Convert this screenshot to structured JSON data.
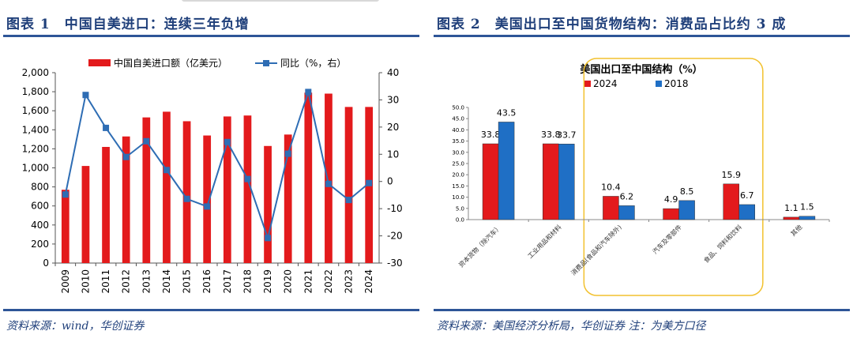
{
  "figures": [
    {
      "title": "图表 1　中国自美进口：连续三年负增",
      "source": "资料来源：wind，华创证券"
    },
    {
      "title": "图表 2　美国出口至中国货物结构：消费品占比约 3 成",
      "source": "资料来源：美国经济分析局，华创证券 注：为美方口径"
    }
  ],
  "chart_data": [
    {
      "type": "bar",
      "categories": [
        "2009",
        "2010",
        "2011",
        "2012",
        "2013",
        "2014",
        "2015",
        "2016",
        "2017",
        "2018",
        "2019",
        "2020",
        "2021",
        "2022",
        "2023",
        "2024"
      ],
      "series": [
        {
          "name": "中国自美进口额（亿美元）",
          "type": "bar",
          "axis": "left",
          "color": "#E31A1C",
          "values": [
            770,
            1020,
            1220,
            1330,
            1530,
            1590,
            1490,
            1340,
            1540,
            1550,
            1230,
            1350,
            1790,
            1780,
            1640,
            1640
          ]
        },
        {
          "name": "同比（%，右）",
          "type": "line",
          "axis": "right",
          "color": "#2E6DB4",
          "values": [
            -4.8,
            31.8,
            19.7,
            9.0,
            14.8,
            4.2,
            -6.4,
            -9.2,
            14.5,
            0.9,
            -20.8,
            10.2,
            32.9,
            -0.9,
            -6.8,
            -0.6
          ]
        }
      ],
      "y_left": {
        "min": 0,
        "max": 2000,
        "ticks": [
          "0",
          "200",
          "400",
          "600",
          "800",
          "1,000",
          "1,200",
          "1,400",
          "1,600",
          "1,800",
          "2,000"
        ]
      },
      "y_right": {
        "min": -30,
        "max": 40,
        "ticks": [
          "-30",
          "-20",
          "-10",
          "0",
          "10",
          "20",
          "30",
          "40"
        ]
      },
      "legend_position": "top"
    },
    {
      "type": "bar",
      "title": "美国出口至中国结构（%）",
      "categories": [
        "资本货物（除汽车）",
        "工业用品和材料",
        "消费品(食品和汽车除外)",
        "汽车及零部件",
        "食品、饲料和饮料",
        "其他"
      ],
      "series": [
        {
          "name": "2024",
          "color": "#E31A1C",
          "values": [
            33.8,
            33.8,
            10.4,
            4.9,
            15.9,
            1.1
          ],
          "labels": [
            "33.8",
            "33.8",
            "10.4",
            "4.9",
            "15.9",
            "1.1"
          ]
        },
        {
          "name": "2018",
          "color": "#1F6FC5",
          "values": [
            43.5,
            33.7,
            6.2,
            8.5,
            6.7,
            1.5
          ],
          "labels": [
            "43.5",
            "33.7",
            "6.2",
            "8.5",
            "6.7",
            "1.5"
          ]
        }
      ],
      "y": {
        "min": 0,
        "max": 50,
        "ticks": [
          "0.0",
          "5.0",
          "10.0",
          "15.0",
          "20.0",
          "25.0",
          "30.0",
          "35.0",
          "40.0",
          "45.0",
          "50.0"
        ]
      },
      "highlight": "rounded box around categories 3–5",
      "legend_position": "top"
    }
  ]
}
